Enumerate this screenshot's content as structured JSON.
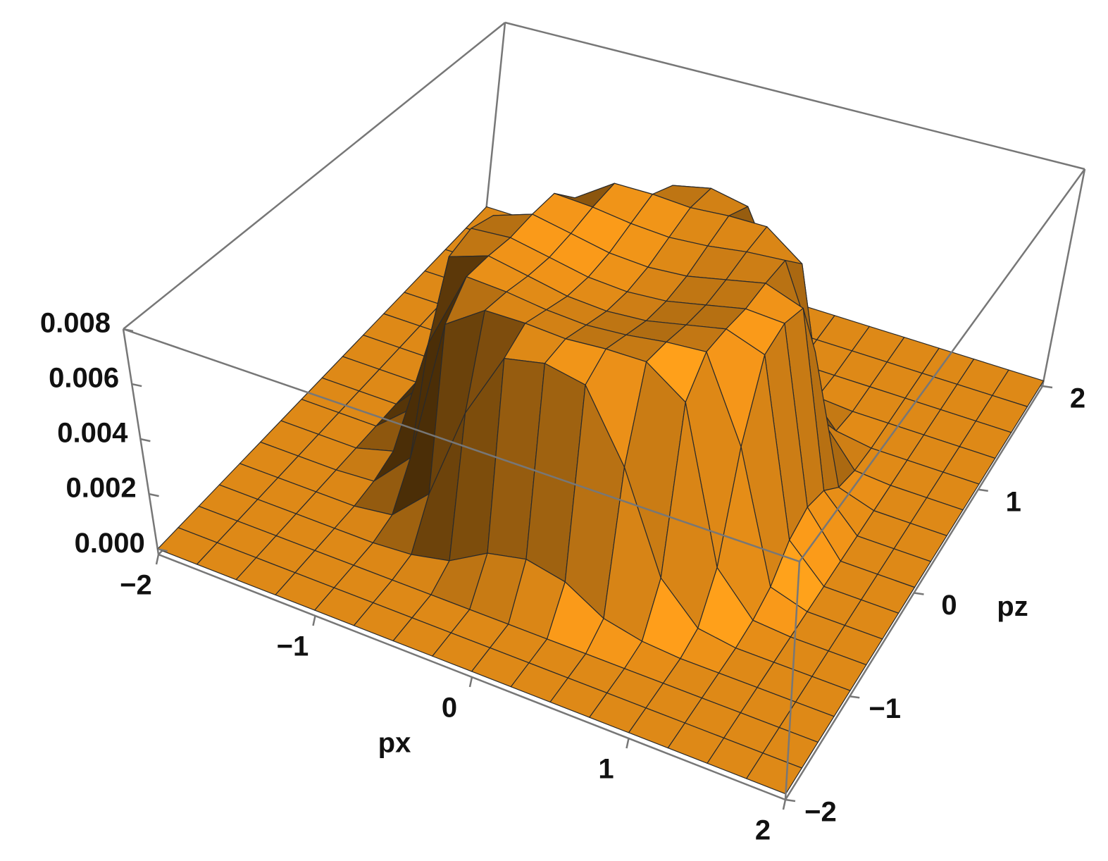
{
  "chart_data": {
    "type": "surface",
    "x_label": "px",
    "y_label": "pz",
    "x": [
      -2,
      -1.75,
      -1.5,
      -1.25,
      -1,
      -0.75,
      -0.5,
      -0.25,
      0,
      0.25,
      0.5,
      0.75,
      1,
      1.25,
      1.5,
      1.75,
      2
    ],
    "y": [
      -2,
      -1.75,
      -1.5,
      -1.25,
      -1,
      -0.75,
      -0.5,
      -0.25,
      0,
      0.25,
      0.5,
      0.75,
      1,
      1.25,
      1.5,
      1.75,
      2
    ],
    "z": [
      [
        0,
        0,
        0,
        0,
        0,
        0,
        0,
        0,
        0,
        0,
        0,
        0,
        0,
        0,
        0,
        0,
        0
      ],
      [
        0,
        0,
        0,
        0,
        0,
        0,
        0,
        0,
        0,
        0,
        0,
        0,
        0,
        0,
        0,
        0,
        0
      ],
      [
        0,
        0,
        0,
        0,
        0,
        0,
        0,
        0,
        0,
        0,
        0,
        0,
        0,
        0,
        0,
        0,
        0
      ],
      [
        0,
        0,
        0,
        0,
        0,
        0.0001,
        0.0004,
        0.0012,
        0.0015,
        0.0012,
        0.0004,
        0.0001,
        0,
        0,
        0,
        0,
        0
      ],
      [
        0,
        0,
        0,
        0,
        0.0002,
        0.0015,
        0.005,
        0.0075,
        0.0078,
        0.0075,
        0.005,
        0.0015,
        0.0002,
        0,
        0,
        0,
        0
      ],
      [
        0,
        0,
        0,
        0.0001,
        0.0015,
        0.007,
        0.008,
        0.008,
        0.0079,
        0.008,
        0.008,
        0.007,
        0.0015,
        0.0001,
        0,
        0,
        0
      ],
      [
        0,
        0,
        0,
        0.0004,
        0.005,
        0.008,
        0.0079,
        0.0077,
        0.0076,
        0.0077,
        0.0079,
        0.008,
        0.005,
        0.0004,
        0,
        0,
        0
      ],
      [
        0,
        0,
        0,
        0.0012,
        0.0075,
        0.008,
        0.0077,
        0.0074,
        0.0073,
        0.0074,
        0.0077,
        0.008,
        0.0075,
        0.0012,
        0,
        0,
        0
      ],
      [
        0,
        0,
        0,
        0.0015,
        0.0078,
        0.0079,
        0.0076,
        0.0073,
        0.0072,
        0.0073,
        0.0076,
        0.0079,
        0.0078,
        0.0015,
        0,
        0,
        0
      ],
      [
        0,
        0,
        0,
        0.0012,
        0.0075,
        0.008,
        0.0077,
        0.0074,
        0.0073,
        0.0074,
        0.0077,
        0.008,
        0.0075,
        0.0012,
        0,
        0,
        0
      ],
      [
        0,
        0,
        0,
        0.0004,
        0.005,
        0.008,
        0.0079,
        0.0077,
        0.0076,
        0.0077,
        0.0079,
        0.008,
        0.005,
        0.0004,
        0,
        0,
        0
      ],
      [
        0,
        0,
        0,
        0.0001,
        0.0015,
        0.007,
        0.008,
        0.008,
        0.0079,
        0.008,
        0.008,
        0.007,
        0.0015,
        0.0001,
        0,
        0,
        0
      ],
      [
        0,
        0,
        0,
        0,
        0.0002,
        0.0015,
        0.005,
        0.0075,
        0.0078,
        0.0075,
        0.005,
        0.0015,
        0.0002,
        0,
        0,
        0,
        0
      ],
      [
        0,
        0,
        0,
        0,
        0,
        0.0001,
        0.0004,
        0.0012,
        0.0015,
        0.0012,
        0.0004,
        0.0001,
        0,
        0,
        0,
        0,
        0
      ],
      [
        0,
        0,
        0,
        0,
        0,
        0,
        0,
        0,
        0,
        0,
        0,
        0,
        0,
        0,
        0,
        0,
        0
      ],
      [
        0,
        0,
        0,
        0,
        0,
        0,
        0,
        0,
        0,
        0,
        0,
        0,
        0,
        0,
        0,
        0,
        0
      ],
      [
        0,
        0,
        0,
        0,
        0,
        0,
        0,
        0,
        0,
        0,
        0,
        0,
        0,
        0,
        0,
        0,
        0
      ]
    ],
    "xlim": [
      -2,
      2
    ],
    "ylim": [
      -2,
      2
    ],
    "zlim": [
      -0.0002,
      0.008
    ],
    "xticks": [
      {
        "value": -2,
        "label": "−2"
      },
      {
        "value": -1,
        "label": "−1"
      },
      0,
      1,
      2
    ],
    "yticks": [
      {
        "value": -2,
        "label": "−2"
      },
      {
        "value": -1,
        "label": "−1"
      },
      0,
      1,
      2
    ],
    "zticks": [
      {
        "value": 0,
        "label": "0.000"
      },
      0.002,
      0.004,
      0.006,
      0.008
    ],
    "color": "#f0861a",
    "mesh_color": "#2a2a2a"
  }
}
